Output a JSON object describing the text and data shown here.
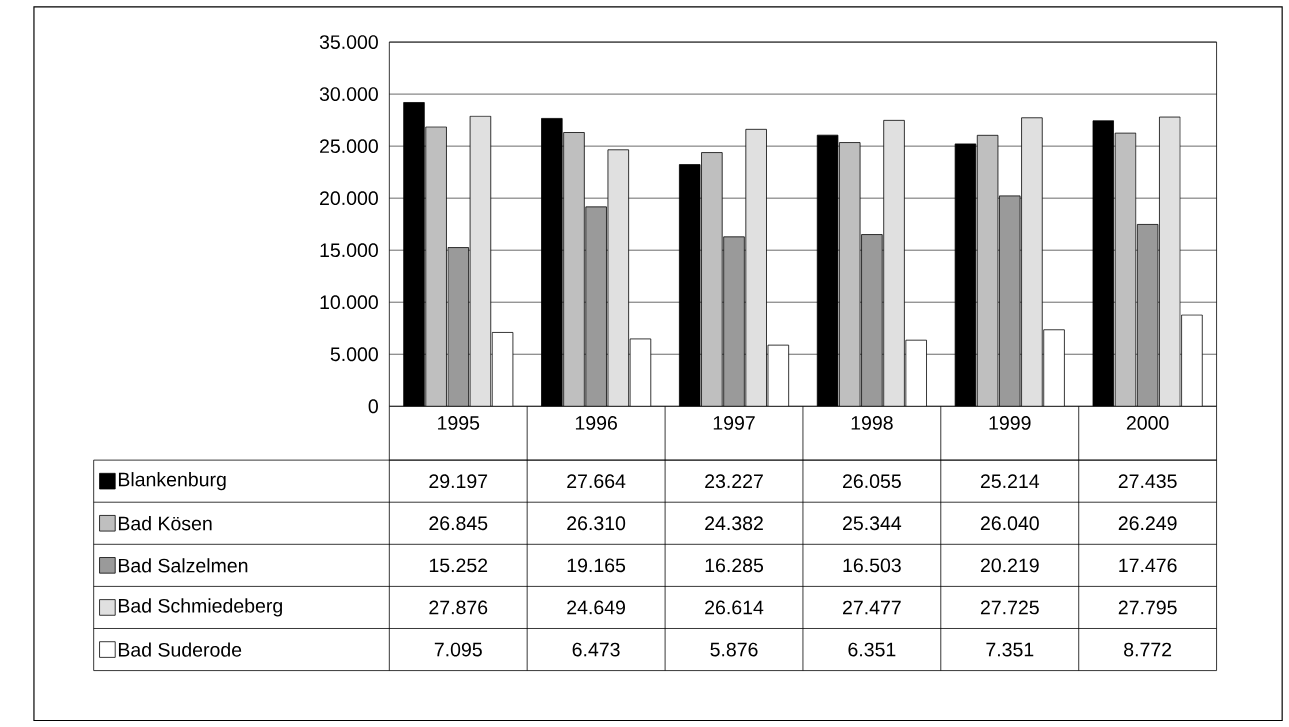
{
  "chart_data": {
    "type": "bar",
    "categories": [
      "1995",
      "1996",
      "1997",
      "1998",
      "1999",
      "2000"
    ],
    "series": [
      {
        "name": "Blankenburg",
        "color": "#000000",
        "values": [
          29197,
          27664,
          23227,
          26055,
          25214,
          27435
        ],
        "value_labels": [
          "29.197",
          "27.664",
          "23.227",
          "26.055",
          "25.214",
          "27.435"
        ]
      },
      {
        "name": "Bad Kösen",
        "color": "#bfbfbf",
        "values": [
          26845,
          26310,
          24382,
          25344,
          26040,
          26249
        ],
        "value_labels": [
          "26.845",
          "26.310",
          "24.382",
          "25.344",
          "26.040",
          "26.249"
        ]
      },
      {
        "name": "Bad Salzelmen",
        "color": "#9a9a9a",
        "values": [
          15252,
          19165,
          16285,
          16503,
          20219,
          17476
        ],
        "value_labels": [
          "15.252",
          "19.165",
          "16.285",
          "16.503",
          "20.219",
          "17.476"
        ]
      },
      {
        "name": "Bad Schmiedeberg",
        "color": "#e0e0e0",
        "values": [
          27876,
          24649,
          26614,
          27477,
          27725,
          27795
        ],
        "value_labels": [
          "27.876",
          "24.649",
          "26.614",
          "27.477",
          "27.725",
          "27.795"
        ]
      },
      {
        "name": "Bad Suderode",
        "color": "#ffffff",
        "values": [
          7095,
          6473,
          5876,
          6351,
          7351,
          8772
        ],
        "value_labels": [
          "7.095",
          "6.473",
          "5.876",
          "6.351",
          "7.351",
          "8.772"
        ]
      }
    ],
    "ylim": [
      0,
      35000
    ],
    "yticks": [
      0,
      {
        "value": 5000,
        "label": "5.000"
      },
      {
        "value": 10000,
        "label": "10.000"
      },
      {
        "value": 15000,
        "label": "15.000"
      },
      {
        "value": 20000,
        "label": "20.000"
      },
      {
        "value": 25000,
        "label": "25.000"
      },
      {
        "value": 30000,
        "label": "30.000"
      },
      {
        "value": 35000,
        "label": "35.000"
      }
    ],
    "grid": "y",
    "legend": "bottom"
  }
}
